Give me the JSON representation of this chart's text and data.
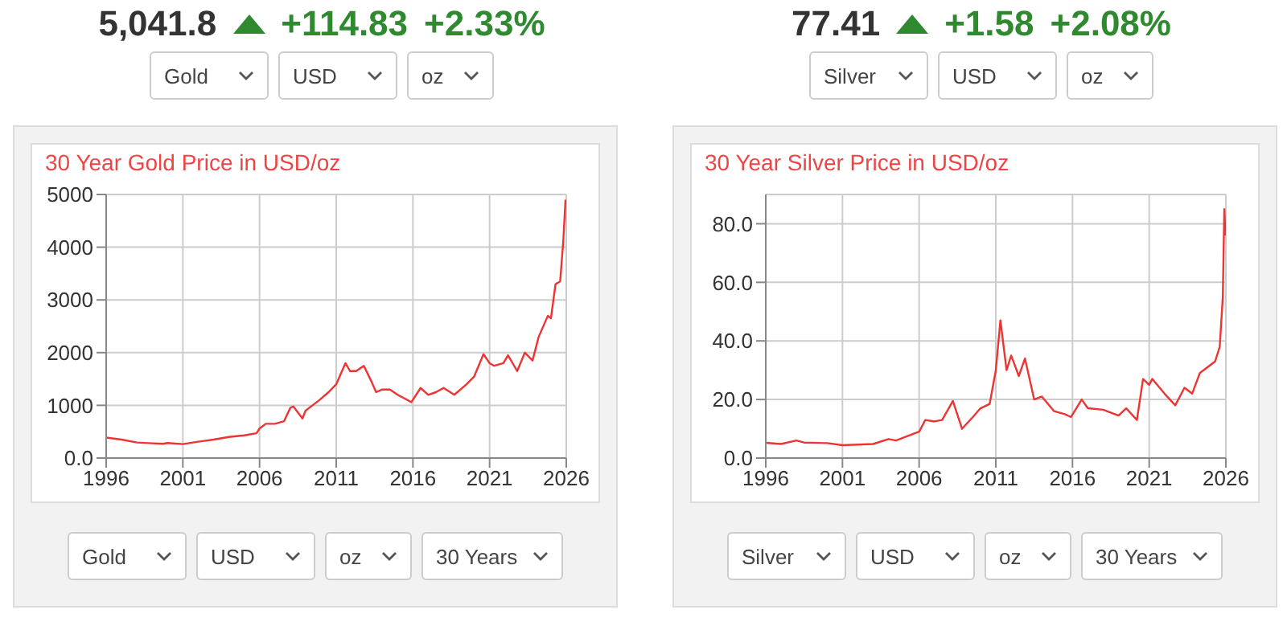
{
  "chart_data": [
    {
      "type": "line",
      "title": "30 Year Gold Price in USD/oz",
      "x": [
        1996,
        1997,
        1998,
        1999,
        1999.7,
        2000,
        2001,
        2002,
        2003,
        2004,
        2005,
        2005.8,
        2006,
        2006.4,
        2007,
        2007.6,
        2008,
        2008.2,
        2008.8,
        2009,
        2009.9,
        2010.5,
        2011,
        2011.6,
        2011.9,
        2012.3,
        2012.8,
        2013.3,
        2013.6,
        2014,
        2014.5,
        2015,
        2015.9,
        2016.5,
        2017,
        2017.5,
        2018,
        2018.7,
        2019.5,
        2020,
        2020.6,
        2021,
        2021.3,
        2021.9,
        2022.2,
        2022.8,
        2023.3,
        2023.8,
        2024.2,
        2024.8,
        2025,
        2025.3,
        2025.6,
        2025.8,
        2025.95
      ],
      "series": [
        {
          "color": "#ee3333",
          "values": [
            390,
            350,
            295,
            280,
            270,
            285,
            265,
            310,
            350,
            400,
            430,
            470,
            560,
            650,
            650,
            700,
            950,
            980,
            750,
            900,
            1100,
            1250,
            1400,
            1800,
            1650,
            1650,
            1750,
            1450,
            1250,
            1300,
            1300,
            1200,
            1060,
            1330,
            1200,
            1250,
            1330,
            1200,
            1400,
            1550,
            1970,
            1800,
            1750,
            1800,
            1950,
            1650,
            2000,
            1850,
            2300,
            2700,
            2650,
            3300,
            3350,
            4100,
            4900
          ]
        }
      ],
      "xlim": [
        1996,
        2026
      ],
      "xticks": [
        1996,
        2001,
        2006,
        2011,
        2016,
        2021,
        2026
      ],
      "ylim": [
        0,
        5000
      ],
      "yticks": [
        {
          "value": 0,
          "label": "0.0"
        },
        1000,
        2000,
        3000,
        4000,
        5000
      ],
      "grid": true,
      "annotations": [
        "5,041.8",
        "+114.83",
        "+2.33%",
        "Gold",
        "USD",
        "oz",
        "Gold",
        "USD",
        "oz",
        "30 Years"
      ]
    },
    {
      "type": "line",
      "title": "30 Year Silver Price in USD/oz",
      "x": [
        1996,
        1997,
        1998,
        1998.5,
        2000,
        2001,
        2002,
        2003,
        2004,
        2004.5,
        2005,
        2006,
        2006.4,
        2007,
        2007.5,
        2008.2,
        2008.8,
        2009.5,
        2010,
        2010.6,
        2011,
        2011.3,
        2011.7,
        2012,
        2012.5,
        2012.9,
        2013.5,
        2014,
        2014.8,
        2015.5,
        2015.9,
        2016.6,
        2017,
        2018,
        2019,
        2019.5,
        2020.2,
        2020.6,
        2021,
        2021.2,
        2022,
        2022.7,
        2023.3,
        2023.8,
        2024.3,
        2024.8,
        2025.3,
        2025.6,
        2025.8,
        2025.9,
        2025.97
      ],
      "series": [
        {
          "color": "#ee3333",
          "values": [
            5.2,
            4.8,
            6,
            5.3,
            5.1,
            4.4,
            4.6,
            4.8,
            6.5,
            6,
            7,
            9,
            13,
            12.5,
            13,
            19.5,
            10,
            14,
            17,
            18.5,
            30,
            47,
            30,
            35,
            28,
            34,
            20,
            21,
            16,
            15,
            14,
            20,
            17,
            16.5,
            14.5,
            17,
            13,
            27,
            25,
            27,
            22,
            18,
            24,
            22,
            29,
            31,
            33,
            38,
            55,
            85,
            76
          ]
        }
      ],
      "xlim": [
        1996,
        2026
      ],
      "xticks": [
        1996,
        2001,
        2006,
        2011,
        2016,
        2021,
        2026
      ],
      "ylim": [
        0,
        90
      ],
      "yticks": [
        {
          "value": 0,
          "label": "0.0"
        },
        {
          "value": 20,
          "label": "20.0"
        },
        {
          "value": 40,
          "label": "40.0"
        },
        {
          "value": 60,
          "label": "60.0"
        },
        {
          "value": 80,
          "label": "80.0"
        }
      ],
      "grid": true,
      "annotations": [
        "77.41",
        "+1.58",
        "+2.08%",
        "Silver",
        "USD",
        "oz",
        "Silver",
        "USD",
        "oz",
        "30 Years"
      ]
    }
  ]
}
